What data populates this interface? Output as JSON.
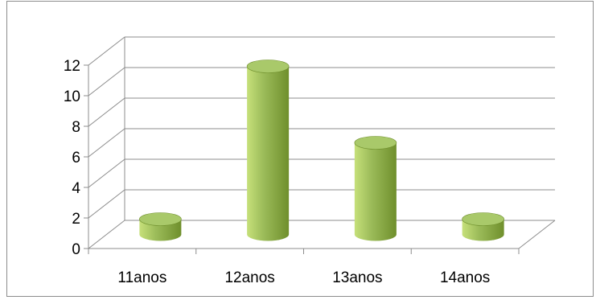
{
  "chart_data": {
    "type": "bar",
    "categories": [
      "11anos",
      "12anos",
      "13anos",
      "14anos"
    ],
    "values": [
      1,
      11,
      6,
      1
    ],
    "ylim": [
      0,
      12
    ],
    "yticks": [
      "0",
      "2",
      "4",
      "6",
      "8",
      "10",
      "12"
    ],
    "title": "",
    "xlabel": "",
    "ylabel": "",
    "grid": true,
    "legend": "none",
    "bar_style": "3d-cylinder",
    "colors": {
      "bar_light": "#c6e07a",
      "bar_mid": "#9bbb59",
      "bar_dark": "#6f8f2c",
      "bar_top": "#a9c96a",
      "gridline": "#8c8c8c"
    }
  }
}
